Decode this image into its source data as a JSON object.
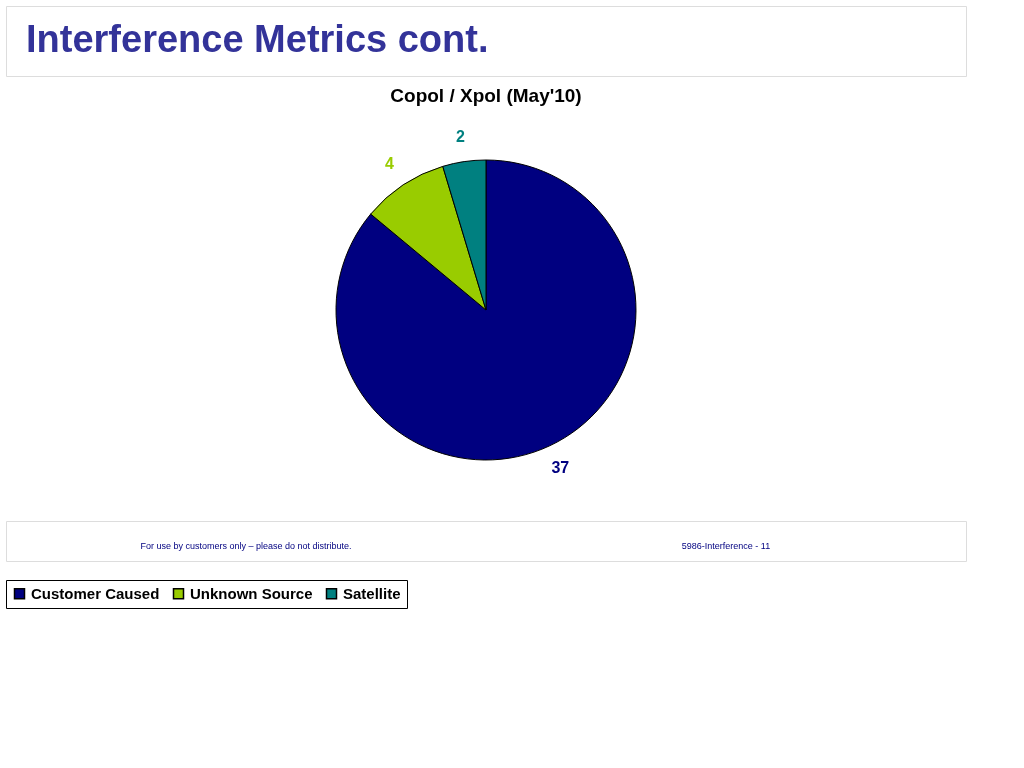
{
  "chart_data": {
    "type": "pie",
    "title": "Interference Metrics cont.",
    "subtitle": "Copol / Xpol (May'10)",
    "categories": [
      "Customer Caused",
      "Unknown Source",
      "Satellite"
    ],
    "values": [
      37,
      4,
      2
    ],
    "colors": [
      "#000080",
      "#99cc00",
      "#008080"
    ],
    "data_labels": true,
    "legend": "bottom",
    "annotations": [
      "For use by customers only – please do not distribute.",
      "5986-Interference - 11"
    ]
  }
}
